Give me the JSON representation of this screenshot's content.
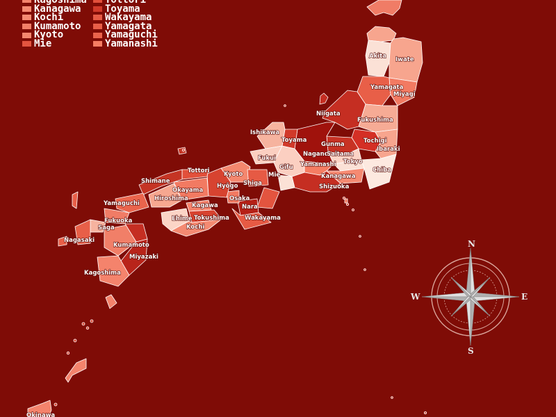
{
  "legend": {
    "col1": [
      {
        "name": "Kagoshima",
        "color": "#f4836c"
      },
      {
        "name": "Kanagawa",
        "color": "#f58a72"
      },
      {
        "name": "Kochi",
        "color": "#f48a72"
      },
      {
        "name": "Kumamoto",
        "color": "#f17f68"
      },
      {
        "name": "Kyoto",
        "color": "#f4876e"
      },
      {
        "name": "Mie",
        "color": "#e3543f"
      }
    ],
    "col2": [
      {
        "name": "Tottori",
        "color": "#e2503b"
      },
      {
        "name": "Toyama",
        "color": "#d13a2a"
      },
      {
        "name": "Wakayama",
        "color": "#e65a44"
      },
      {
        "name": "Yamagata",
        "color": "#e85f48"
      },
      {
        "name": "Yamaguchi",
        "color": "#ea644c"
      },
      {
        "name": "Yamanashi",
        "color": "#f57d63"
      }
    ]
  },
  "map_labels": [
    "Akita",
    "Iwate",
    "Yamagata",
    "Miyagi",
    "Niigata",
    "Fukushima",
    "Ishikawa",
    "Toyama",
    "Tochigi",
    "Gunma",
    "Ibaraki",
    "Nagano",
    "Saitama",
    "Fukui",
    "Tokyo",
    "Gifu",
    "Yamanashi",
    "Chiba",
    "Kyoto",
    "Tottori",
    "Shimane",
    "Shiga",
    "Kanagawa",
    "Okayama",
    "Hyōgo",
    "Shizuoka",
    "Hiroshima",
    "Osaka",
    "Mie",
    "Yamaguchi",
    "Kagawa",
    "Nara",
    "Ehime",
    "Tokushima",
    "Wakayama",
    "Saga",
    "Fukuoka",
    "Kochi",
    "Nagasaki",
    "Kumamoto",
    "Miyazaki",
    "Kagoshima",
    "Okinawa"
  ],
  "compass": {
    "n": "N",
    "e": "E",
    "s": "S",
    "w": "W"
  },
  "colors": {
    "ocean": "#7f0c06",
    "border": "#ffffff",
    "lightest": "#fbe1d6",
    "darkest": "#a0120c"
  }
}
